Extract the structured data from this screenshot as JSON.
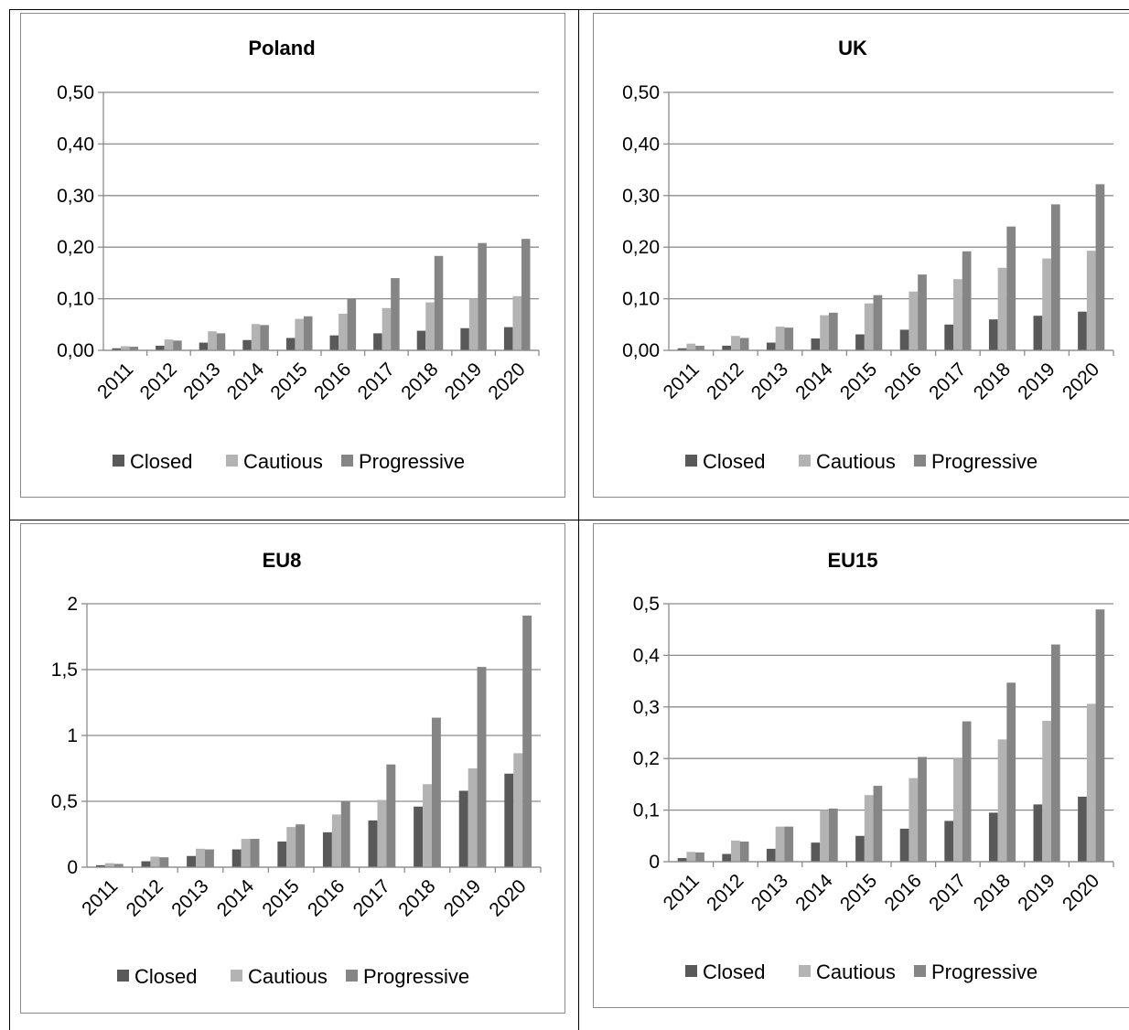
{
  "legend_colors": {
    "Closed": "#595959",
    "Cautious": "#b3b3b3",
    "Progressive": "#858585"
  },
  "chart_data": [
    {
      "type": "bar",
      "title": "Poland",
      "categories": [
        "2011",
        "2012",
        "2013",
        "2014",
        "2015",
        "2016",
        "2017",
        "2018",
        "2019",
        "2020"
      ],
      "series": [
        {
          "name": "Closed",
          "values": [
            0.004,
            0.009,
            0.015,
            0.02,
            0.024,
            0.029,
            0.033,
            0.038,
            0.043,
            0.045
          ]
        },
        {
          "name": "Cautious",
          "values": [
            0.008,
            0.021,
            0.037,
            0.051,
            0.061,
            0.071,
            0.082,
            0.093,
            0.1,
            0.105
          ]
        },
        {
          "name": "Progressive",
          "values": [
            0.007,
            0.019,
            0.033,
            0.049,
            0.066,
            0.1,
            0.14,
            0.183,
            0.208,
            0.216
          ]
        }
      ],
      "ylim": [
        0,
        0.5
      ],
      "yticks": [
        "0,00",
        "0,10",
        "0,20",
        "0,30",
        "0,40",
        "0,50"
      ],
      "grid": true,
      "legend_position": "bottom"
    },
    {
      "type": "bar",
      "title": "UK",
      "categories": [
        "2011",
        "2012",
        "2013",
        "2014",
        "2015",
        "2016",
        "2017",
        "2018",
        "2019",
        "2020"
      ],
      "series": [
        {
          "name": "Closed",
          "values": [
            0.004,
            0.009,
            0.015,
            0.023,
            0.031,
            0.04,
            0.05,
            0.06,
            0.067,
            0.075
          ]
        },
        {
          "name": "Cautious",
          "values": [
            0.013,
            0.028,
            0.046,
            0.068,
            0.091,
            0.114,
            0.138,
            0.16,
            0.178,
            0.193
          ]
        },
        {
          "name": "Progressive",
          "values": [
            0.009,
            0.024,
            0.044,
            0.073,
            0.107,
            0.147,
            0.192,
            0.24,
            0.283,
            0.322
          ]
        }
      ],
      "ylim": [
        0,
        0.5
      ],
      "yticks": [
        "0,00",
        "0,10",
        "0,20",
        "0,30",
        "0,40",
        "0,50"
      ],
      "grid": true,
      "legend_position": "bottom"
    },
    {
      "type": "bar",
      "title": "EU8",
      "categories": [
        "2011",
        "2012",
        "2013",
        "2014",
        "2015",
        "2016",
        "2017",
        "2018",
        "2019",
        "2020"
      ],
      "series": [
        {
          "name": "Closed",
          "values": [
            0.015,
            0.045,
            0.085,
            0.135,
            0.195,
            0.265,
            0.355,
            0.46,
            0.58,
            0.71
          ]
        },
        {
          "name": "Cautious",
          "values": [
            0.03,
            0.08,
            0.14,
            0.215,
            0.305,
            0.4,
            0.51,
            0.63,
            0.75,
            0.865
          ]
        },
        {
          "name": "Progressive",
          "values": [
            0.025,
            0.075,
            0.135,
            0.215,
            0.325,
            0.5,
            0.78,
            1.135,
            1.52,
            1.91
          ]
        }
      ],
      "ylim": [
        0,
        2
      ],
      "yticks": [
        "0",
        "0,5",
        "1",
        "1,5",
        "2"
      ],
      "grid": true,
      "legend_position": "bottom"
    },
    {
      "type": "bar",
      "title": "EU15",
      "categories": [
        "2011",
        "2012",
        "2013",
        "2014",
        "2015",
        "2016",
        "2017",
        "2018",
        "2019",
        "2020"
      ],
      "series": [
        {
          "name": "Closed",
          "values": [
            0.007,
            0.015,
            0.025,
            0.037,
            0.05,
            0.064,
            0.079,
            0.095,
            0.111,
            0.126
          ]
        },
        {
          "name": "Cautious",
          "values": [
            0.019,
            0.041,
            0.068,
            0.1,
            0.129,
            0.162,
            0.2,
            0.237,
            0.273,
            0.306
          ]
        },
        {
          "name": "Progressive",
          "values": [
            0.018,
            0.039,
            0.068,
            0.103,
            0.147,
            0.203,
            0.272,
            0.347,
            0.421,
            0.489
          ]
        }
      ],
      "ylim": [
        0,
        0.5
      ],
      "yticks": [
        "0",
        "0,1",
        "0,2",
        "0,3",
        "0,4",
        "0,5"
      ],
      "grid": true,
      "legend_position": "bottom"
    }
  ]
}
